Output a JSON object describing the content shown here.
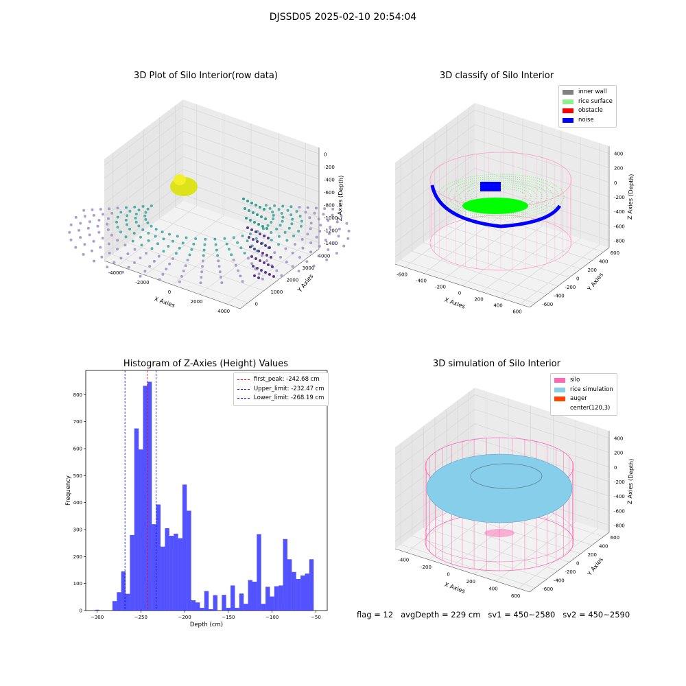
{
  "suptitle": "DJSSD05 2025-02-10 20:54:04",
  "panels": {
    "p1": {
      "title": "3D Plot of Silo Interior(row data)",
      "xlabel": "X Axies",
      "ylabel": "Y Axies",
      "zlabel": "Z Axies (Depth)",
      "xticks": [
        "-4000",
        "-2000",
        "0",
        "2000",
        "4000"
      ],
      "yticks": [
        "0",
        "1000",
        "2000",
        "3000",
        "4000"
      ],
      "zticks": [
        "0",
        "-200",
        "-400",
        "-600",
        "-800",
        "-1000",
        "-1200",
        "-1400"
      ]
    },
    "p2": {
      "title": "3D classify of Silo Interior",
      "xlabel": "X Axies",
      "ylabel": "Y Axies",
      "zlabel": "Z Axies (Depth)",
      "xticks": [
        "-600",
        "-400",
        "-200",
        "0",
        "200",
        "400",
        "600"
      ],
      "yticks": [
        "-600",
        "-400",
        "-200",
        "0",
        "200",
        "400",
        "600"
      ],
      "zticks": [
        "400",
        "200",
        "0",
        "-200",
        "-400",
        "-600",
        "-800"
      ],
      "legend": [
        {
          "label": "inner wall",
          "color": "#808080"
        },
        {
          "label": "rice surface",
          "color": "#90ee90"
        },
        {
          "label": "obstacle",
          "color": "#ff0000"
        },
        {
          "label": "noise",
          "color": "#0000ff"
        }
      ]
    },
    "p3": {
      "title": "Histogram of Z-Axies (Height) Values",
      "xlabel": "Depth (cm)",
      "ylabel": "Frequency"
    },
    "p4": {
      "title": "3D simulation of Silo Interior",
      "xlabel": "X Axies",
      "ylabel": "Y Axies",
      "zlabel": "Z Axies (Depth)",
      "xticks": [
        "-400",
        "-200",
        "0",
        "200",
        "400",
        "600"
      ],
      "yticks": [
        "-600",
        "-400",
        "-200",
        "0",
        "200",
        "400",
        "600"
      ],
      "zticks": [
        "400",
        "200",
        "0",
        "-200",
        "-400",
        "-600",
        "-800"
      ],
      "legend": [
        {
          "label": "silo",
          "color": "#ff69b4"
        },
        {
          "label": "rice simulation",
          "color": "#87ceeb"
        },
        {
          "label": "auger",
          "color": "#ff4500"
        },
        {
          "label": "center(120,3)",
          "color": "#ffffff"
        }
      ]
    }
  },
  "footer": "flag = 12   avgDepth = 229 cm   sv1 = 450~2580   sv2 = 450~2590",
  "chart_data": {
    "type": "bar",
    "title": "Histogram of Z-Axies (Height) Values",
    "xlabel": "Depth (cm)",
    "ylabel": "Frequency",
    "xlim": [
      -313,
      -37
    ],
    "ylim": [
      0,
      890
    ],
    "xticks": [
      -300,
      -250,
      -200,
      -150,
      -100,
      -50
    ],
    "yticks": [
      0,
      100,
      200,
      300,
      400,
      500,
      600,
      700,
      800
    ],
    "bin_width": 5.0,
    "bin_start": -302.5,
    "bar_color": "#0000ff",
    "values": [
      3,
      0,
      0,
      0,
      35,
      68,
      145,
      62,
      280,
      675,
      597,
      833,
      848,
      320,
      393,
      237,
      305,
      277,
      285,
      268,
      467,
      370,
      38,
      30,
      10,
      72,
      5,
      57,
      0,
      58,
      10,
      93,
      10,
      63,
      25,
      113,
      107,
      283,
      25,
      88,
      52,
      90,
      93,
      265,
      190,
      143,
      117,
      130,
      137,
      190
    ],
    "lines": [
      {
        "label": "first_peak: -242.68 cm",
        "x": -242.68,
        "color": "#ff0000"
      },
      {
        "label": "Upper_limit: -232.47 cm",
        "x": -232.47,
        "color": "#0000ff"
      },
      {
        "label": "Lower_limit: -268.19 cm",
        "x": -268.19,
        "color": "#0000ff"
      }
    ]
  }
}
